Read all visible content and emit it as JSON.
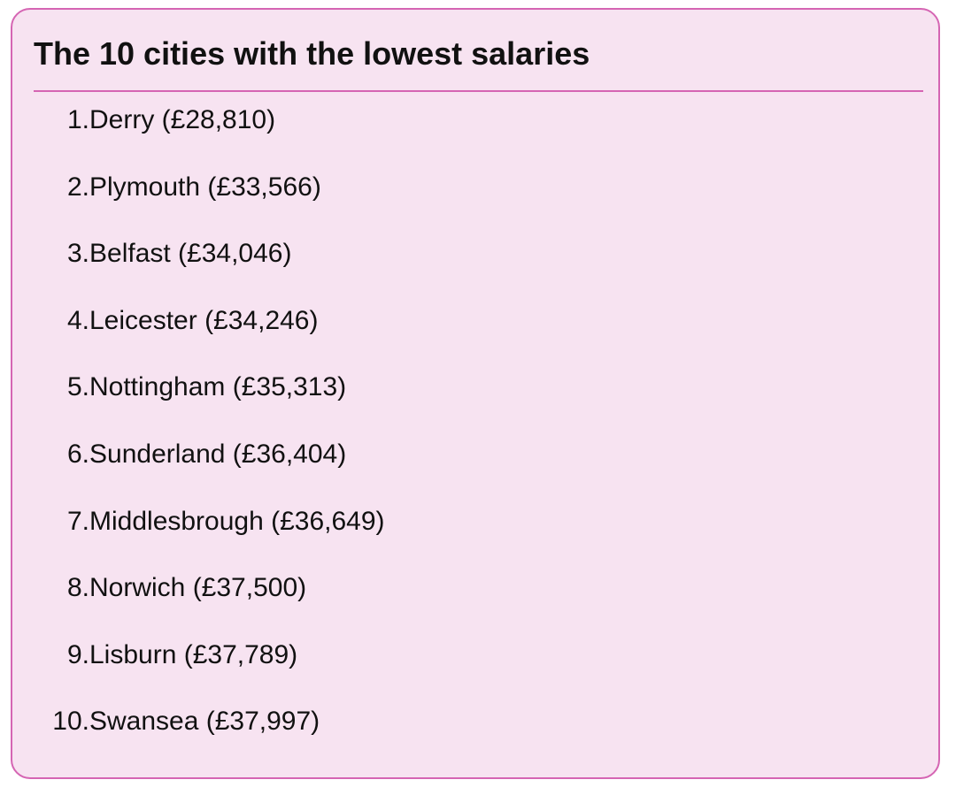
{
  "title": "The 10 cities with the lowest salaries",
  "items": [
    {
      "num": "1.",
      "text": "Derry (£28,810)"
    },
    {
      "num": "2.",
      "text": "Plymouth (£33,566)"
    },
    {
      "num": "3.",
      "text": "Belfast (£34,046)"
    },
    {
      "num": "4.",
      "text": "Leicester (£34,246)"
    },
    {
      "num": "5.",
      "text": "Nottingham (£35,313)"
    },
    {
      "num": "6.",
      "text": "Sunderland (£36,404)"
    },
    {
      "num": "7.",
      "text": "Middlesbrough (£36,649)"
    },
    {
      "num": "8.",
      "text": "Norwich (£37,500)"
    },
    {
      "num": "9.",
      "text": "Lisburn (£37,789)"
    },
    {
      "num": "10.",
      "text": "Swansea (£37,997)"
    }
  ],
  "colors": {
    "background": "#f7e3f1",
    "border": "#d565b3",
    "text": "#111111"
  }
}
